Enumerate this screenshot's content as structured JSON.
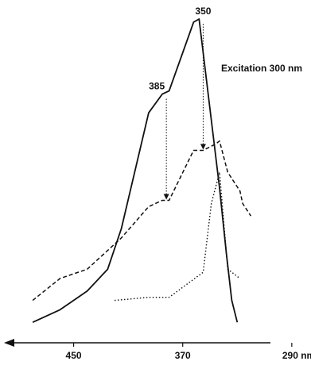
{
  "chart_data": {
    "type": "line",
    "title": "",
    "xlabel": "",
    "ylabel": "",
    "x_direction": "decreasing",
    "xlim": [
      490,
      280
    ],
    "ylim": [
      0,
      100
    ],
    "x_tick_values": [
      450,
      370,
      290
    ],
    "x_tick_labels": [
      "450",
      "370",
      "290 nm"
    ],
    "annotation": "Excitation 300 nm",
    "series": [
      {
        "style": "solid",
        "points": [
          [
            480,
            3
          ],
          [
            460,
            7
          ],
          [
            440,
            13
          ],
          [
            425,
            20
          ],
          [
            415,
            33
          ],
          [
            395,
            70
          ],
          [
            385,
            76
          ],
          [
            380,
            77
          ],
          [
            362,
            99
          ],
          [
            358,
            100
          ],
          [
            343,
            46
          ],
          [
            338,
            25
          ],
          [
            334,
            10
          ],
          [
            330,
            3
          ]
        ]
      },
      {
        "style": "dashed",
        "points": [
          [
            480,
            10
          ],
          [
            460,
            17
          ],
          [
            440,
            20
          ],
          [
            430,
            24
          ],
          [
            415,
            30
          ],
          [
            395,
            40
          ],
          [
            385,
            42
          ],
          [
            380,
            42
          ],
          [
            362,
            58
          ],
          [
            355,
            58
          ],
          [
            346,
            60
          ],
          [
            343,
            61
          ],
          [
            337,
            51
          ],
          [
            328,
            45
          ],
          [
            326,
            41
          ],
          [
            320,
            37
          ]
        ]
      },
      {
        "style": "dotted",
        "points": [
          [
            420,
            10
          ],
          [
            395,
            11
          ],
          [
            380,
            11
          ],
          [
            355,
            19
          ],
          [
            349,
            41
          ],
          [
            343,
            51
          ],
          [
            337,
            20
          ],
          [
            328,
            17
          ]
        ]
      }
    ],
    "markers": [
      {
        "label": "350",
        "x": 355,
        "from_y": 100,
        "to_y": 58
      },
      {
        "label": "385",
        "x": 382,
        "from_y": 76,
        "to_y": 42
      }
    ]
  }
}
